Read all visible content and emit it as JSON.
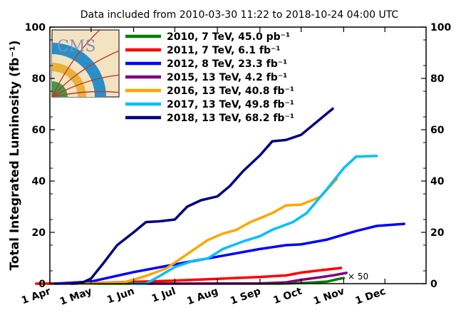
{
  "chart_data": {
    "type": "line",
    "title": "Data included from 2010-03-30 11:22 to 2018-10-24 04:00 UTC",
    "xlabel": "",
    "ylabel": "Total Integrated Luminosity (fb⁻¹)",
    "ylim": [
      0,
      100
    ],
    "yticks": [
      0,
      20,
      40,
      60,
      80,
      100
    ],
    "xlim": [
      "2018-04-01",
      "2018-12-31"
    ],
    "xticks": [
      {
        "date": "2018-04-01",
        "label": "1 Apr"
      },
      {
        "date": "2018-05-01",
        "label": "1 May"
      },
      {
        "date": "2018-06-01",
        "label": "1 Jun"
      },
      {
        "date": "2018-07-01",
        "label": "1 Jul"
      },
      {
        "date": "2018-08-01",
        "label": "1 Aug"
      },
      {
        "date": "2018-09-01",
        "label": "1 Sep"
      },
      {
        "date": "2018-10-01",
        "label": "1 Oct"
      },
      {
        "date": "2018-11-01",
        "label": "1 Nov"
      },
      {
        "date": "2018-12-01",
        "label": "1 Dec"
      }
    ],
    "grid": false,
    "legend_position": "top-left",
    "annotation": "× 50",
    "series": [
      {
        "name": "2010, 7 TeV, 45.0 pb⁻¹",
        "color": "#008000",
        "x": [
          "2018-03-30",
          "2018-08-15",
          "2018-09-15",
          "2018-10-05",
          "2018-10-20",
          "2018-10-28",
          "2018-11-01"
        ],
        "y": [
          0,
          0,
          0,
          0.3,
          0.8,
          1.8,
          2.2
        ]
      },
      {
        "name": "2011, 7 TeV, 6.1 fb⁻¹",
        "color": "#ff0000",
        "x": [
          "2018-03-22",
          "2018-05-01",
          "2018-06-01",
          "2018-07-01",
          "2018-08-01",
          "2018-09-01",
          "2018-09-20",
          "2018-10-01",
          "2018-10-15",
          "2018-10-30"
        ],
        "y": [
          0,
          0.2,
          0.7,
          1.2,
          1.9,
          2.6,
          3.2,
          4.3,
          5.2,
          6.1
        ]
      },
      {
        "name": "2012, 8 TeV, 23.3 fb⁻¹",
        "color": "#0000ff",
        "x": [
          "2018-04-05",
          "2018-05-01",
          "2018-06-01",
          "2018-07-01",
          "2018-08-01",
          "2018-09-01",
          "2018-09-20",
          "2018-10-01",
          "2018-10-20",
          "2018-11-10",
          "2018-11-25",
          "2018-12-15"
        ],
        "y": [
          0,
          0.8,
          4.5,
          7.5,
          10.5,
          13.5,
          15,
          15.3,
          17.2,
          20.5,
          22.5,
          23.3
        ]
      },
      {
        "name": "2015, 13 TeV, 4.2 fb⁻¹",
        "color": "#800080",
        "x": [
          "2018-06-03",
          "2018-08-15",
          "2018-09-01",
          "2018-09-20",
          "2018-10-01",
          "2018-10-15",
          "2018-10-25",
          "2018-11-03"
        ],
        "y": [
          0,
          0.05,
          0.1,
          0.5,
          1.5,
          2.5,
          3.3,
          4.2
        ]
      },
      {
        "name": "2016, 13 TeV, 40.8 fb⁻¹",
        "color": "#ffa500",
        "x": [
          "2018-04-22",
          "2018-05-25",
          "2018-06-10",
          "2018-06-25",
          "2018-07-10",
          "2018-07-25",
          "2018-08-05",
          "2018-08-15",
          "2018-08-25",
          "2018-09-10",
          "2018-09-20",
          "2018-10-01",
          "2018-10-15",
          "2018-10-27"
        ],
        "y": [
          0,
          0.5,
          3,
          6,
          11.5,
          17,
          19.5,
          21,
          24,
          27.5,
          30.5,
          30.8,
          33.8,
          40.8
        ]
      },
      {
        "name": "2017, 13 TeV, 49.8 fb⁻¹",
        "color": "#00bfff",
        "x": [
          "2018-05-30",
          "2018-06-10",
          "2018-06-20",
          "2018-07-01",
          "2018-07-15",
          "2018-07-25",
          "2018-08-05",
          "2018-08-20",
          "2018-09-01",
          "2018-09-10",
          "2018-09-25",
          "2018-10-05",
          "2018-10-20",
          "2018-11-01",
          "2018-11-10",
          "2018-11-25"
        ],
        "y": [
          0,
          0,
          3,
          6.5,
          9,
          9.8,
          13.5,
          16.5,
          18.5,
          21,
          24,
          27.5,
          37,
          45,
          49.5,
          49.8
        ]
      },
      {
        "name": "2018, 13 TeV, 68.2 fb⁻¹",
        "color": "#000080",
        "x": [
          "2018-04-17",
          "2018-04-25",
          "2018-05-01",
          "2018-05-10",
          "2018-05-20",
          "2018-06-01",
          "2018-06-10",
          "2018-06-20",
          "2018-07-01",
          "2018-07-10",
          "2018-07-20",
          "2018-08-01",
          "2018-08-10",
          "2018-08-20",
          "2018-09-01",
          "2018-09-10",
          "2018-09-20",
          "2018-10-01",
          "2018-10-10",
          "2018-10-24"
        ],
        "y": [
          0,
          0.5,
          2,
          8,
          15,
          20,
          24,
          24.3,
          25,
          30,
          32.5,
          34,
          38,
          44,
          50,
          55.5,
          56,
          58,
          62,
          68.2
        ]
      }
    ]
  }
}
